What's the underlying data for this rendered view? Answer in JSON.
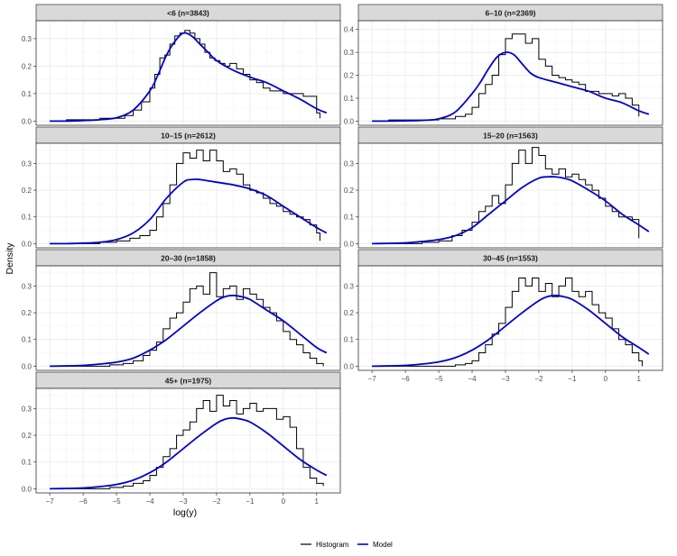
{
  "chart_data": {
    "type": "line",
    "subtype": "faceted histogram (step) with fitted model density",
    "xlabel": "log(y)",
    "ylabel": "Density",
    "xlim": [
      -7,
      1.3
    ],
    "x_ticks": [
      -7,
      -6,
      -5,
      -4,
      -3,
      -2,
      -1,
      0,
      1
    ],
    "x_tick_labels": [
      "−7",
      "−6",
      "−5",
      "−4",
      "−3",
      "−2",
      "−1",
      "0",
      "1"
    ],
    "grid": true,
    "legend": {
      "position": "bottom",
      "entries": [
        {
          "label": "Histogram",
          "color": "#000000"
        },
        {
          "label": "Model",
          "color": "#0000cc"
        }
      ]
    },
    "colors": {
      "histogram": "#000000",
      "model": "#0000cc",
      "strip": "#d9d9d9",
      "grid": "#ebebeb"
    },
    "panels": [
      {
        "title": "<6 (n=3843)",
        "ylim": [
          0,
          0.35
        ],
        "y_ticks": [
          0.0,
          0.1,
          0.2,
          0.3
        ],
        "y_tick_labels": [
          "0.0",
          "0.1",
          "0.2",
          "0.3"
        ],
        "model": {
          "x": [
            -7,
            -6.5,
            -6,
            -5.5,
            -5,
            -4.5,
            -4,
            -3.75,
            -3.5,
            -3.25,
            -3,
            -2.75,
            -2.5,
            -2.25,
            -2,
            -1.5,
            -1,
            -0.5,
            0,
            0.5,
            1,
            1.3
          ],
          "y": [
            0.0,
            0.0,
            0.002,
            0.005,
            0.012,
            0.04,
            0.11,
            0.17,
            0.24,
            0.29,
            0.32,
            0.31,
            0.28,
            0.25,
            0.22,
            0.185,
            0.16,
            0.14,
            0.11,
            0.08,
            0.045,
            0.03
          ]
        },
        "histogram": {
          "x": [
            -7,
            -6.5,
            -6,
            -5.5,
            -5,
            -4.75,
            -4.5,
            -4.25,
            -4,
            -3.85,
            -3.7,
            -3.55,
            -3.4,
            -3.25,
            -3.1,
            -2.95,
            -2.8,
            -2.65,
            -2.5,
            -2.35,
            -2.2,
            -2.05,
            -1.9,
            -1.75,
            -1.6,
            -1.4,
            -1.2,
            -1.0,
            -0.8,
            -0.6,
            -0.4,
            -0.2,
            0.0,
            0.2,
            0.4,
            0.6,
            0.8,
            1.0,
            1.1
          ],
          "y": [
            0.0,
            0.005,
            0.005,
            0.01,
            0.01,
            0.02,
            0.04,
            0.07,
            0.12,
            0.17,
            0.23,
            0.24,
            0.28,
            0.31,
            0.32,
            0.33,
            0.32,
            0.3,
            0.28,
            0.25,
            0.23,
            0.22,
            0.21,
            0.2,
            0.21,
            0.19,
            0.17,
            0.15,
            0.14,
            0.12,
            0.11,
            0.11,
            0.1,
            0.1,
            0.1,
            0.09,
            0.09,
            0.03,
            0.01
          ]
        }
      },
      {
        "title": "6–10 (n=2369)",
        "ylim": [
          0,
          0.42
        ],
        "y_ticks": [
          0.0,
          0.1,
          0.2,
          0.3,
          0.4
        ],
        "y_tick_labels": [
          "0.0",
          "0.1",
          "0.2",
          "0.3",
          "0.4"
        ],
        "model": {
          "x": [
            -7,
            -6.5,
            -6,
            -5.5,
            -5,
            -4.5,
            -4,
            -3.75,
            -3.5,
            -3.25,
            -3,
            -2.75,
            -2.5,
            -2.25,
            -2,
            -1.5,
            -1,
            -0.5,
            0,
            0.5,
            1,
            1.3
          ],
          "y": [
            0.0,
            0.0,
            0.001,
            0.003,
            0.01,
            0.04,
            0.12,
            0.17,
            0.23,
            0.28,
            0.3,
            0.29,
            0.25,
            0.21,
            0.19,
            0.17,
            0.15,
            0.13,
            0.1,
            0.08,
            0.045,
            0.03
          ]
        },
        "histogram": {
          "x": [
            -7,
            -6.5,
            -6,
            -5.5,
            -5,
            -4.5,
            -4.2,
            -4.0,
            -3.8,
            -3.6,
            -3.4,
            -3.2,
            -3.0,
            -2.8,
            -2.6,
            -2.4,
            -2.2,
            -2.0,
            -1.8,
            -1.6,
            -1.4,
            -1.2,
            -1.0,
            -0.8,
            -0.6,
            -0.4,
            -0.2,
            0.0,
            0.2,
            0.4,
            0.6,
            0.8,
            1.0
          ],
          "y": [
            0.0,
            0.005,
            0.005,
            0.005,
            0.01,
            0.02,
            0.03,
            0.06,
            0.12,
            0.16,
            0.2,
            0.29,
            0.36,
            0.38,
            0.38,
            0.34,
            0.36,
            0.27,
            0.24,
            0.2,
            0.19,
            0.18,
            0.17,
            0.16,
            0.13,
            0.13,
            0.12,
            0.12,
            0.11,
            0.12,
            0.1,
            0.07,
            0.02
          ]
        }
      },
      {
        "title": "10–15 (n=2612)",
        "ylim": [
          0,
          0.36
        ],
        "y_ticks": [
          0.0,
          0.1,
          0.2,
          0.3
        ],
        "y_tick_labels": [
          "0.0",
          "0.1",
          "0.2",
          "0.3"
        ],
        "model": {
          "x": [
            -7,
            -6.5,
            -6,
            -5.5,
            -5,
            -4.5,
            -4,
            -3.5,
            -3,
            -2.75,
            -2.5,
            -2.25,
            -2,
            -1.5,
            -1,
            -0.5,
            0,
            0.5,
            1,
            1.3
          ],
          "y": [
            0.0,
            0.0,
            0.002,
            0.005,
            0.015,
            0.04,
            0.09,
            0.17,
            0.23,
            0.24,
            0.24,
            0.235,
            0.23,
            0.22,
            0.205,
            0.18,
            0.14,
            0.1,
            0.06,
            0.04
          ]
        },
        "histogram": {
          "x": [
            -7,
            -5.5,
            -5.0,
            -4.6,
            -4.3,
            -4.0,
            -3.8,
            -3.6,
            -3.4,
            -3.2,
            -3.0,
            -2.8,
            -2.6,
            -2.4,
            -2.2,
            -2.0,
            -1.8,
            -1.6,
            -1.4,
            -1.2,
            -1.0,
            -0.8,
            -0.6,
            -0.4,
            -0.2,
            0.0,
            0.2,
            0.4,
            0.6,
            0.8,
            1.0,
            1.1
          ],
          "y": [
            0.0,
            0.005,
            0.01,
            0.02,
            0.03,
            0.05,
            0.1,
            0.15,
            0.22,
            0.3,
            0.34,
            0.32,
            0.35,
            0.31,
            0.35,
            0.31,
            0.27,
            0.28,
            0.26,
            0.22,
            0.2,
            0.19,
            0.17,
            0.15,
            0.14,
            0.12,
            0.11,
            0.1,
            0.09,
            0.07,
            0.04,
            0.01
          ]
        }
      },
      {
        "title": "15–20 (n=1563)",
        "ylim": [
          0,
          0.36
        ],
        "y_ticks": [
          0.0,
          0.1,
          0.2,
          0.3
        ],
        "y_tick_labels": [
          "0.0",
          "0.1",
          "0.2",
          "0.3"
        ],
        "model": {
          "x": [
            -7,
            -6.5,
            -6,
            -5.5,
            -5,
            -4.5,
            -4,
            -3.5,
            -3,
            -2.5,
            -2,
            -1.75,
            -1.5,
            -1.25,
            -1,
            -0.5,
            0,
            0.5,
            1,
            1.3
          ],
          "y": [
            0.0,
            0.001,
            0.003,
            0.008,
            0.015,
            0.03,
            0.06,
            0.11,
            0.16,
            0.21,
            0.245,
            0.25,
            0.25,
            0.245,
            0.235,
            0.2,
            0.16,
            0.11,
            0.07,
            0.045
          ]
        },
        "histogram": {
          "x": [
            -7,
            -5.5,
            -5.0,
            -4.6,
            -4.3,
            -4.0,
            -3.8,
            -3.6,
            -3.4,
            -3.2,
            -3.0,
            -2.8,
            -2.6,
            -2.4,
            -2.2,
            -2.0,
            -1.8,
            -1.6,
            -1.4,
            -1.2,
            -1.0,
            -0.8,
            -0.6,
            -0.4,
            -0.2,
            0.0,
            0.2,
            0.4,
            0.6,
            0.8,
            1.0
          ],
          "y": [
            0.0,
            0.005,
            0.01,
            0.03,
            0.05,
            0.08,
            0.12,
            0.14,
            0.18,
            0.15,
            0.22,
            0.3,
            0.35,
            0.3,
            0.36,
            0.33,
            0.28,
            0.26,
            0.28,
            0.25,
            0.26,
            0.24,
            0.22,
            0.2,
            0.17,
            0.14,
            0.12,
            0.1,
            0.1,
            0.09,
            0.02
          ]
        }
      },
      {
        "title": "20–30 (n=1858)",
        "ylim": [
          0,
          0.36
        ],
        "y_ticks": [
          0.0,
          0.1,
          0.2,
          0.3
        ],
        "y_tick_labels": [
          "0.0",
          "0.1",
          "0.2",
          "0.3"
        ],
        "model": {
          "x": [
            -7,
            -6.5,
            -6,
            -5.5,
            -5,
            -4.5,
            -4,
            -3.5,
            -3,
            -2.5,
            -2,
            -1.75,
            -1.5,
            -1.25,
            -1,
            -0.5,
            0,
            0.5,
            1,
            1.3
          ],
          "y": [
            0.0,
            0.001,
            0.003,
            0.008,
            0.015,
            0.03,
            0.06,
            0.1,
            0.15,
            0.2,
            0.245,
            0.26,
            0.265,
            0.26,
            0.25,
            0.21,
            0.17,
            0.12,
            0.07,
            0.05
          ]
        },
        "histogram": {
          "x": [
            -7,
            -5.2,
            -4.8,
            -4.5,
            -4.2,
            -4.0,
            -3.8,
            -3.6,
            -3.4,
            -3.2,
            -3.0,
            -2.8,
            -2.6,
            -2.4,
            -2.2,
            -2.0,
            -1.8,
            -1.6,
            -1.4,
            -1.2,
            -1.0,
            -0.8,
            -0.6,
            -0.4,
            -0.2,
            0.0,
            0.2,
            0.4,
            0.6,
            0.8,
            1.0,
            1.2
          ],
          "y": [
            0.0,
            0.005,
            0.01,
            0.02,
            0.04,
            0.06,
            0.09,
            0.14,
            0.18,
            0.2,
            0.24,
            0.29,
            0.3,
            0.27,
            0.35,
            0.26,
            0.29,
            0.3,
            0.25,
            0.29,
            0.27,
            0.25,
            0.22,
            0.2,
            0.17,
            0.13,
            0.1,
            0.08,
            0.05,
            0.03,
            0.01,
            0.0
          ]
        }
      },
      {
        "title": "30–45 (n=1553)",
        "ylim": [
          0,
          0.36
        ],
        "y_ticks": [
          0.0,
          0.1,
          0.2,
          0.3
        ],
        "y_tick_labels": [
          "0.0",
          "0.1",
          "0.2",
          "0.3"
        ],
        "model": {
          "x": [
            -7,
            -6.5,
            -6,
            -5.5,
            -5,
            -4.5,
            -4,
            -3.5,
            -3,
            -2.5,
            -2,
            -1.75,
            -1.5,
            -1.25,
            -1,
            -0.5,
            0,
            0.5,
            1,
            1.3
          ],
          "y": [
            0.0,
            0.001,
            0.003,
            0.008,
            0.016,
            0.032,
            0.06,
            0.1,
            0.15,
            0.2,
            0.245,
            0.26,
            0.265,
            0.26,
            0.25,
            0.21,
            0.16,
            0.11,
            0.07,
            0.045
          ]
        },
        "histogram": {
          "x": [
            -7,
            -4.5,
            -4.2,
            -4.0,
            -3.8,
            -3.6,
            -3.4,
            -3.2,
            -3.0,
            -2.8,
            -2.6,
            -2.4,
            -2.2,
            -2.0,
            -1.8,
            -1.6,
            -1.4,
            -1.2,
            -1.0,
            -0.8,
            -0.6,
            -0.4,
            -0.2,
            0.0,
            0.2,
            0.4,
            0.6,
            0.8,
            1.0,
            1.1
          ],
          "y": [
            0.0,
            0.005,
            0.01,
            0.02,
            0.05,
            0.08,
            0.12,
            0.16,
            0.22,
            0.28,
            0.33,
            0.3,
            0.33,
            0.28,
            0.31,
            0.26,
            0.3,
            0.33,
            0.28,
            0.26,
            0.28,
            0.23,
            0.2,
            0.18,
            0.14,
            0.1,
            0.08,
            0.05,
            0.02,
            0.0
          ]
        }
      },
      {
        "title": "45+ (n=1975)",
        "ylim": [
          0,
          0.36
        ],
        "y_ticks": [
          0.0,
          0.1,
          0.2,
          0.3
        ],
        "y_tick_labels": [
          "0.0",
          "0.1",
          "0.2",
          "0.3"
        ],
        "model": {
          "x": [
            -7,
            -6.5,
            -6,
            -5.5,
            -5,
            -4.5,
            -4,
            -3.5,
            -3,
            -2.5,
            -2,
            -1.75,
            -1.5,
            -1.25,
            -1,
            -0.5,
            0,
            0.5,
            1,
            1.3
          ],
          "y": [
            0.0,
            0.001,
            0.003,
            0.008,
            0.016,
            0.032,
            0.06,
            0.1,
            0.15,
            0.2,
            0.245,
            0.26,
            0.265,
            0.26,
            0.25,
            0.21,
            0.16,
            0.11,
            0.07,
            0.05
          ]
        },
        "histogram": {
          "x": [
            -7,
            -5.2,
            -4.8,
            -4.5,
            -4.2,
            -4.0,
            -3.8,
            -3.6,
            -3.4,
            -3.2,
            -3.0,
            -2.8,
            -2.6,
            -2.4,
            -2.2,
            -2.0,
            -1.8,
            -1.6,
            -1.4,
            -1.2,
            -1.0,
            -0.8,
            -0.6,
            -0.4,
            -0.2,
            0.0,
            0.2,
            0.4,
            0.6,
            0.8,
            1.0,
            1.2
          ],
          "y": [
            0.0,
            0.005,
            0.01,
            0.02,
            0.03,
            0.05,
            0.08,
            0.12,
            0.15,
            0.2,
            0.22,
            0.25,
            0.3,
            0.33,
            0.29,
            0.35,
            0.31,
            0.33,
            0.28,
            0.3,
            0.32,
            0.29,
            0.3,
            0.3,
            0.26,
            0.27,
            0.23,
            0.15,
            0.08,
            0.04,
            0.02,
            0.01
          ]
        }
      }
    ]
  }
}
